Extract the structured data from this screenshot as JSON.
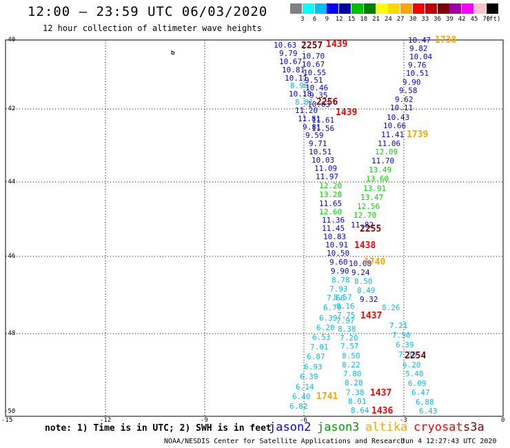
{
  "title": "12:00 – 23:59 UTC 06/03/2020",
  "subtitle": "12 hour collection of altimeter wave heights",
  "colorbar": {
    "unit": "(ft)",
    "ticks": [
      "3",
      "6",
      "9",
      "12",
      "15",
      "18",
      "21",
      "24",
      "27",
      "30",
      "33",
      "36",
      "39",
      "42",
      "45",
      "70"
    ],
    "colors": [
      "#808080",
      "#00ffff",
      "#00bfff",
      "#0000ff",
      "#0000a0",
      "#00c000",
      "#008000",
      "#ffff00",
      "#ffd700",
      "#ffa500",
      "#ff0000",
      "#c00000",
      "#800000",
      "#a000a0",
      "#ff00ff",
      "#ffc0cb",
      "#000000"
    ]
  },
  "axes": {
    "lat_labels": [
      "-40",
      "-42",
      "-44",
      "-46",
      "-48",
      "-50"
    ],
    "lon_labels": [
      "-15",
      "-12",
      "-9",
      "-6",
      "-3",
      "0"
    ]
  },
  "satellites": [
    {
      "name": "jason2",
      "color": "#0000ff"
    },
    {
      "name": "jason3",
      "color": "#00a000"
    },
    {
      "name": "altika",
      "color": "#ffa500"
    },
    {
      "name": "cryosat",
      "color": "#ff0000"
    },
    {
      "name": "s3a",
      "color": "#800000"
    }
  ],
  "note": "note: 1) Time is in UTC; 2) SWH is in feet",
  "credit": "NOAA/NESDIS Center for Satellite Applications and Research",
  "timestamp": "Jun  4 12:27:43 UTC 2020",
  "time_labels": [
    {
      "text": "2257",
      "color": "#800000"
    },
    {
      "text": "1439",
      "color": "#ff0000"
    },
    {
      "text": "1738",
      "color": "#ffa500"
    },
    {
      "text": "2256",
      "color": "#800000"
    },
    {
      "text": "1439",
      "color": "#ff0000"
    },
    {
      "text": "1739",
      "color": "#ffa500"
    },
    {
      "text": "2255",
      "color": "#800000"
    },
    {
      "text": "1438",
      "color": "#ff0000"
    },
    {
      "text": "1740",
      "color": "#ffa500"
    },
    {
      "text": "1437",
      "color": "#ff0000"
    },
    {
      "text": "2254",
      "color": "#800000"
    },
    {
      "text": "1741",
      "color": "#ffa500"
    },
    {
      "text": "1437",
      "color": "#ff0000"
    },
    {
      "text": "1436",
      "color": "#ff0000"
    }
  ],
  "swh_values": [
    {
      "text": "10.63",
      "color": "#0000ff"
    },
    {
      "text": "9.79",
      "color": "#0000ff"
    },
    {
      "text": "10.67",
      "color": "#0000ff"
    },
    {
      "text": "10.81",
      "color": "#0000ff"
    },
    {
      "text": "10.11",
      "color": "#0000ff"
    },
    {
      "text": "8.90",
      "color": "#00bfff"
    },
    {
      "text": "10.18",
      "color": "#0000ff"
    },
    {
      "text": "8.81",
      "color": "#00bfff"
    },
    {
      "text": "11.20",
      "color": "#0000ff"
    },
    {
      "text": "11.81",
      "color": "#0000ff"
    },
    {
      "text": "9.81",
      "color": "#0000ff"
    },
    {
      "text": "9.59",
      "color": "#0000ff"
    },
    {
      "text": "9.71",
      "color": "#0000ff"
    },
    {
      "text": "10.51",
      "color": "#0000ff"
    },
    {
      "text": "10.03",
      "color": "#0000ff"
    },
    {
      "text": "11.09",
      "color": "#0000ff"
    },
    {
      "text": "11.97",
      "color": "#0000ff"
    },
    {
      "text": "12.20",
      "color": "#00dd00"
    },
    {
      "text": "13.28",
      "color": "#00dd00"
    },
    {
      "text": "11.65",
      "color": "#0000ff"
    },
    {
      "text": "12.60",
      "color": "#00dd00"
    },
    {
      "text": "11.36",
      "color": "#0000ff"
    },
    {
      "text": "11.45",
      "color": "#0000ff"
    },
    {
      "text": "10.83",
      "color": "#0000ff"
    },
    {
      "text": "10.91",
      "color": "#0000ff"
    },
    {
      "text": "10.50",
      "color": "#0000ff"
    },
    {
      "text": "9.60",
      "color": "#0000ff"
    },
    {
      "text": "9.90",
      "color": "#0000ff"
    },
    {
      "text": "8.78",
      "color": "#00bfff"
    },
    {
      "text": "7.93",
      "color": "#00bfff"
    },
    {
      "text": "7.66",
      "color": "#00bfff"
    },
    {
      "text": "6.79",
      "color": "#00bfff"
    },
    {
      "text": "6.39",
      "color": "#00bfff"
    },
    {
      "text": "6.20",
      "color": "#00bfff"
    },
    {
      "text": "6.53",
      "color": "#00bfff"
    },
    {
      "text": "7.01",
      "color": "#00bfff"
    },
    {
      "text": "6.87",
      "color": "#00bfff"
    },
    {
      "text": "6.93",
      "color": "#00bfff"
    },
    {
      "text": "6.39",
      "color": "#00bfff"
    },
    {
      "text": "6.14",
      "color": "#00bfff"
    },
    {
      "text": "6.40",
      "color": "#00bfff"
    },
    {
      "text": "6.82",
      "color": "#00bfff"
    },
    {
      "text": "10.70",
      "color": "#0000ff"
    },
    {
      "text": "10.67",
      "color": "#0000ff"
    },
    {
      "text": "10.55",
      "color": "#0000ff"
    },
    {
      "text": "9.51",
      "color": "#0000ff"
    },
    {
      "text": "10.46",
      "color": "#0000ff"
    },
    {
      "text": "9.35",
      "color": "#0000ff"
    },
    {
      "text": "10.63",
      "color": "#0000ff"
    },
    {
      "text": "11.61",
      "color": "#0000ff"
    },
    {
      "text": "11.56",
      "color": "#0000ff"
    },
    {
      "text": "10.08",
      "color": "#0000ff"
    },
    {
      "text": "9.24",
      "color": "#0000ff"
    },
    {
      "text": "8.50",
      "color": "#00bfff"
    },
    {
      "text": "8.49",
      "color": "#00bfff"
    },
    {
      "text": "9.32",
      "color": "#0000ff"
    },
    {
      "text": "8.57",
      "color": "#00bfff"
    },
    {
      "text": "8.16",
      "color": "#00bfff"
    },
    {
      "text": "7.75",
      "color": "#00bfff"
    },
    {
      "text": "7.97",
      "color": "#00bfff"
    },
    {
      "text": "8.38",
      "color": "#00bfff"
    },
    {
      "text": "7.20",
      "color": "#00bfff"
    },
    {
      "text": "7.57",
      "color": "#00bfff"
    },
    {
      "text": "8.50",
      "color": "#00bfff"
    },
    {
      "text": "8.22",
      "color": "#00bfff"
    },
    {
      "text": "7.80",
      "color": "#00bfff"
    },
    {
      "text": "8.28",
      "color": "#00bfff"
    },
    {
      "text": "7.38",
      "color": "#00bfff"
    },
    {
      "text": "8.01",
      "color": "#00bfff"
    },
    {
      "text": "8.64",
      "color": "#00bfff"
    },
    {
      "text": "10.47",
      "color": "#0000ff"
    },
    {
      "text": "9.82",
      "color": "#0000ff"
    },
    {
      "text": "10.04",
      "color": "#0000ff"
    },
    {
      "text": "9.76",
      "color": "#0000ff"
    },
    {
      "text": "10.51",
      "color": "#0000ff"
    },
    {
      "text": "9.90",
      "color": "#0000ff"
    },
    {
      "text": "9.58",
      "color": "#0000ff"
    },
    {
      "text": "9.62",
      "color": "#0000ff"
    },
    {
      "text": "10.11",
      "color": "#0000ff"
    },
    {
      "text": "10.43",
      "color": "#0000ff"
    },
    {
      "text": "10.66",
      "color": "#0000ff"
    },
    {
      "text": "11.41",
      "color": "#0000ff"
    },
    {
      "text": "11.06",
      "color": "#0000ff"
    },
    {
      "text": "12.09",
      "color": "#00dd00"
    },
    {
      "text": "11.70",
      "color": "#0000ff"
    },
    {
      "text": "13.49",
      "color": "#00dd00"
    },
    {
      "text": "13.60",
      "color": "#00dd00"
    },
    {
      "text": "13.91",
      "color": "#00dd00"
    },
    {
      "text": "13.47",
      "color": "#00dd00"
    },
    {
      "text": "12.56",
      "color": "#00dd00"
    },
    {
      "text": "12.70",
      "color": "#00dd00"
    },
    {
      "text": "11.82",
      "color": "#0000ff"
    },
    {
      "text": "8.26",
      "color": "#00bfff"
    },
    {
      "text": "7.21",
      "color": "#00bfff"
    },
    {
      "text": "7.50",
      "color": "#00bfff"
    },
    {
      "text": "6.39",
      "color": "#00bfff"
    },
    {
      "text": "7.38",
      "color": "#00bfff"
    },
    {
      "text": "6.20",
      "color": "#00bfff"
    },
    {
      "text": "5.40",
      "color": "#00bfff"
    },
    {
      "text": "6.09",
      "color": "#00bfff"
    },
    {
      "text": "6.47",
      "color": "#00bfff"
    },
    {
      "text": "6.88",
      "color": "#00bfff"
    },
    {
      "text": "6.43",
      "color": "#00bfff"
    }
  ]
}
